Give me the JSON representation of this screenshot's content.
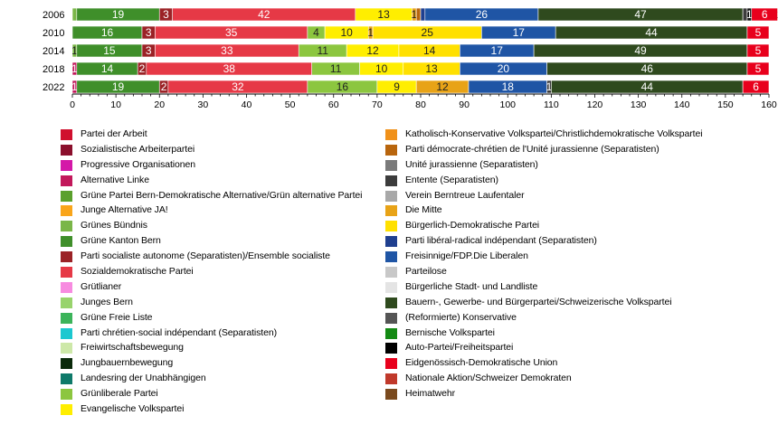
{
  "chart_data": {
    "type": "bar",
    "orientation": "horizontal",
    "stacked": true,
    "categories": [
      "2006",
      "2010",
      "2014",
      "2018",
      "2022"
    ],
    "xlim": [
      0,
      160
    ],
    "xticks": [
      "0",
      "10",
      "20",
      "30",
      "40",
      "50",
      "60",
      "70",
      "80",
      "90",
      "100",
      "110",
      "120",
      "130",
      "140",
      "150",
      "160"
    ],
    "bars": [
      {
        "year": "2006",
        "segments": [
          {
            "party": "Grünes Bündnis",
            "value": 1,
            "color": "#7ab648",
            "label": ""
          },
          {
            "party": "Grüne Kanton Bern",
            "value": 19,
            "color": "#3f8f2a",
            "label": "19"
          },
          {
            "party": "Parti socialiste autonome (Separatisten)/Ensemble socialiste",
            "value": 3,
            "color": "#9b2226",
            "label": "3"
          },
          {
            "party": "Sozialdemokratische Partei",
            "value": 42,
            "color": "#e63946",
            "label": "42"
          },
          {
            "party": "Bürgerlich-Demokratische Partei",
            "value": 13,
            "color": "#ffee00",
            "label": "13"
          },
          {
            "party": "Die Mitte",
            "value": 1,
            "color": "#e8a317",
            "label": "1"
          },
          {
            "party": "Parti démocrate-chrétien de l'Unité jurassienne (Separatisten)",
            "value": 1,
            "color": "#b8650d",
            "label": ""
          },
          {
            "party": "Parti libéral-radical indépendant (Separatisten)",
            "value": 1,
            "color": "#1f3f8f",
            "label": ""
          },
          {
            "party": "Freisinnige/FDP.Die Liberalen",
            "value": 26,
            "color": "#1f55a5",
            "label": "26"
          },
          {
            "party": "Bauern-, Gewerbe- und Bürgerpartei/Schweizerische Volkspartei",
            "value": 47,
            "color": "#2f4a1e",
            "label": "47"
          },
          {
            "party": "Entente (Separatisten)",
            "value": 1,
            "color": "#3c3c3c",
            "label": ""
          },
          {
            "party": "Auto-Partei/Freiheitspartei",
            "value": 1,
            "color": "#111111",
            "label": "1"
          },
          {
            "party": "Eidgenössisch-Demokratische Union",
            "value": 6,
            "color": "#e8001c",
            "label": "6"
          },
          {
            "party": "Junge Alternative JA!",
            "value": 1,
            "color": "#f9a51a",
            "label": "1"
          }
        ]
      },
      {
        "year": "2010",
        "segments": [
          {
            "party": "Grüne Kanton Bern",
            "value": 16,
            "color": "#3f8f2a",
            "label": "16"
          },
          {
            "party": "Parti socialiste autonome (Separatisten)/Ensemble socialiste",
            "value": 3,
            "color": "#9b2226",
            "label": "3"
          },
          {
            "party": "Sozialdemokratische Partei",
            "value": 35,
            "color": "#e63946",
            "label": "35"
          },
          {
            "party": "Grünliberale Partei",
            "value": 4,
            "color": "#8cc63f",
            "label": "4"
          },
          {
            "party": "Evangelische Volkspartei",
            "value": 10,
            "color": "#ffee00",
            "label": "10"
          },
          {
            "party": "Die Mitte",
            "value": 1,
            "color": "#e8a317",
            "label": "1"
          },
          {
            "party": "Bürgerlich-Demokratische Partei",
            "value": 25,
            "color": "#ffe000",
            "label": "25"
          },
          {
            "party": "Freisinnige/FDP.Die Liberalen",
            "value": 17,
            "color": "#1f55a5",
            "label": "17"
          },
          {
            "party": "Bauern-, Gewerbe- und Bürgerpartei/Schweizerische Volkspartei",
            "value": 44,
            "color": "#2f4a1e",
            "label": "44"
          },
          {
            "party": "Eidgenössisch-Demokratische Union",
            "value": 5,
            "color": "#e8001c",
            "label": "5"
          }
        ]
      },
      {
        "year": "2014",
        "segments": [
          {
            "party": "Grünes Bündnis",
            "value": 1,
            "color": "#7ab648",
            "label": "1"
          },
          {
            "party": "Grüne Kanton Bern",
            "value": 15,
            "color": "#3f8f2a",
            "label": "15"
          },
          {
            "party": "Parti socialiste autonome (Separatisten)/Ensemble socialiste",
            "value": 3,
            "color": "#9b2226",
            "label": "3"
          },
          {
            "party": "Sozialdemokratische Partei",
            "value": 33,
            "color": "#e63946",
            "label": "33"
          },
          {
            "party": "Grünliberale Partei",
            "value": 11,
            "color": "#8cc63f",
            "label": "11"
          },
          {
            "party": "Evangelische Volkspartei",
            "value": 12,
            "color": "#ffee00",
            "label": "12"
          },
          {
            "party": "Bürgerlich-Demokratische Partei",
            "value": 14,
            "color": "#ffe000",
            "label": "14"
          },
          {
            "party": "Freisinnige/FDP.Die Liberalen",
            "value": 17,
            "color": "#1f55a5",
            "label": "17"
          },
          {
            "party": "Bauern-, Gewerbe- und Bürgerpartei/Schweizerische Volkspartei",
            "value": 49,
            "color": "#2f4a1e",
            "label": "49"
          },
          {
            "party": "Eidgenössisch-Demokratische Union",
            "value": 5,
            "color": "#e8001c",
            "label": "5"
          }
        ]
      },
      {
        "year": "2018",
        "segments": [
          {
            "party": "Alternative Linke",
            "value": 1,
            "color": "#c2185b",
            "label": "1"
          },
          {
            "party": "Grüne Kanton Bern",
            "value": 14,
            "color": "#3f8f2a",
            "label": "14"
          },
          {
            "party": "Parti socialiste autonome (Separatisten)/Ensemble socialiste",
            "value": 2,
            "color": "#9b2226",
            "label": "2"
          },
          {
            "party": "Sozialdemokratische Partei",
            "value": 38,
            "color": "#e63946",
            "label": "38"
          },
          {
            "party": "Grünliberale Partei",
            "value": 11,
            "color": "#8cc63f",
            "label": "11"
          },
          {
            "party": "Evangelische Volkspartei",
            "value": 10,
            "color": "#ffee00",
            "label": "10"
          },
          {
            "party": "Bürgerlich-Demokratische Partei",
            "value": 13,
            "color": "#ffe000",
            "label": "13"
          },
          {
            "party": "Freisinnige/FDP.Die Liberalen",
            "value": 20,
            "color": "#1f55a5",
            "label": "20"
          },
          {
            "party": "Bauern-, Gewerbe- und Bürgerpartei/Schweizerische Volkspartei",
            "value": 46,
            "color": "#2f4a1e",
            "label": "46"
          },
          {
            "party": "Eidgenössisch-Demokratische Union",
            "value": 5,
            "color": "#e8001c",
            "label": "5"
          }
        ]
      },
      {
        "year": "2022",
        "segments": [
          {
            "party": "Alternative Linke",
            "value": 1,
            "color": "#c2185b",
            "label": "1"
          },
          {
            "party": "Grüne Kanton Bern",
            "value": 19,
            "color": "#3f8f2a",
            "label": "19"
          },
          {
            "party": "Parti socialiste autonome (Separatisten)/Ensemble socialiste",
            "value": 2,
            "color": "#9b2226",
            "label": "2"
          },
          {
            "party": "Sozialdemokratische Partei",
            "value": 32,
            "color": "#e63946",
            "label": "32"
          },
          {
            "party": "Grünliberale Partei",
            "value": 16,
            "color": "#8cc63f",
            "label": "16"
          },
          {
            "party": "Evangelische Volkspartei",
            "value": 9,
            "color": "#ffee00",
            "label": "9"
          },
          {
            "party": "Die Mitte",
            "value": 12,
            "color": "#e8a317",
            "label": "12"
          },
          {
            "party": "Freisinnige/FDP.Die Liberalen",
            "value": 18,
            "color": "#1f55a5",
            "label": "18"
          },
          {
            "party": "Entente (Separatisten)",
            "value": 1,
            "color": "#3c3c3c",
            "label": "1"
          },
          {
            "party": "Bauern-, Gewerbe- und Bürgerpartei/Schweizerische Volkspartei",
            "value": 44,
            "color": "#2f4a1e",
            "label": "44"
          },
          {
            "party": "Eidgenössisch-Demokratische Union",
            "value": 6,
            "color": "#e8001c",
            "label": "6"
          }
        ]
      }
    ],
    "legend": [
      [
        {
          "label": "Partei der Arbeit",
          "color": "#d0102e"
        },
        {
          "label": "Sozialistische Arbeiterpartei",
          "color": "#8b0f2c"
        },
        {
          "label": "Progressive Organisationen",
          "color": "#d418a8"
        },
        {
          "label": "Alternative Linke",
          "color": "#c2185b"
        },
        {
          "label": "Grüne Partei Bern-Demokratische Alternative/Grün alternative Partei",
          "color": "#5aa02c"
        },
        {
          "label": "Junge Alternative JA!",
          "color": "#f9a51a"
        },
        {
          "label": "Grünes Bündnis",
          "color": "#7ab648"
        },
        {
          "label": "Grüne Kanton Bern",
          "color": "#3f8f2a"
        },
        {
          "label": "Parti socialiste autonome (Separatisten)/Ensemble socialiste",
          "color": "#9b2226"
        },
        {
          "label": "Sozialdemokratische Partei",
          "color": "#e63946"
        },
        {
          "label": "Grütlianer",
          "color": "#f78be0"
        },
        {
          "label": "Junges Bern",
          "color": "#98d36c"
        },
        {
          "label": "Grüne Freie Liste",
          "color": "#3cb45a"
        },
        {
          "label": "Parti chrétien-social indépendant (Separatisten)",
          "color": "#1cc8d0"
        },
        {
          "label": "Freiwirtschaftsbewegung",
          "color": "#cde8a8"
        },
        {
          "label": "Jungbauernbewegung",
          "color": "#0a2a0a"
        },
        {
          "label": "Landesring der Unabhängigen",
          "color": "#0f7a6a"
        },
        {
          "label": "Grünliberale Partei",
          "color": "#8cc63f"
        },
        {
          "label": "Evangelische Volkspartei",
          "color": "#ffee00"
        }
      ],
      [
        {
          "label": "Katholisch-Konservative Volkspartei/Christlichdemokratische Volkspartei",
          "color": "#f0911a"
        },
        {
          "label": "Parti démocrate-chrétien de l'Unité jurassienne (Separatisten)",
          "color": "#b8650d"
        },
        {
          "label": "Unité jurassienne (Separatisten)",
          "color": "#7a7a7a"
        },
        {
          "label": "Entente (Separatisten)",
          "color": "#3c3c3c"
        },
        {
          "label": "Verein Berntreue Laufentaler",
          "color": "#a8a8a8"
        },
        {
          "label": "Die Mitte",
          "color": "#e8a317"
        },
        {
          "label": "Bürgerlich-Demokratische Partei",
          "color": "#ffe000"
        },
        {
          "label": "Parti libéral-radical indépendant (Separatisten)",
          "color": "#1f3f8f"
        },
        {
          "label": "Freisinnige/FDP.Die Liberalen",
          "color": "#1f55a5"
        },
        {
          "label": "Parteilose",
          "color": "#c8c8c8"
        },
        {
          "label": "Bürgerliche Stadt- und Landliste",
          "color": "#e4e4e4"
        },
        {
          "label": "Bauern-, Gewerbe- und Bürgerpartei/Schweizerische Volkspartei",
          "color": "#2f4a1e"
        },
        {
          "label": "(Reformierte) Konservative",
          "color": "#555555"
        },
        {
          "label": "Bernische Volkspartei",
          "color": "#138a13"
        },
        {
          "label": "Auto-Partei/Freiheitspartei",
          "color": "#000000"
        },
        {
          "label": "Eidgenössisch-Demokratische Union",
          "color": "#e8001c"
        },
        {
          "label": "Nationale Aktion/Schweizer Demokraten",
          "color": "#c0392b"
        },
        {
          "label": "Heimatwehr",
          "color": "#7a4a1e"
        }
      ]
    ]
  }
}
